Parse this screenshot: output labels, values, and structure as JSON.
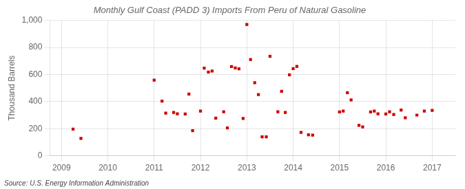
{
  "chart_data": {
    "type": "scatter",
    "title": "Monthly Gulf Coast (PADD 3) Imports From Peru of Natural Gasoline",
    "ylabel": "Thousand Barrels",
    "annotation": "Source: U.S. Energy Information Administration",
    "color": "#cc0000",
    "marker": "square",
    "grid": true,
    "xlim": [
      2008.75,
      2017.5
    ],
    "xticks": [
      2009,
      2010,
      2011,
      2012,
      2013,
      2014,
      2015,
      2016,
      2017
    ],
    "ylim": [
      0,
      1000
    ],
    "yticks": [
      0,
      200,
      400,
      600,
      800,
      {
        "value": 1000,
        "label": "1,000"
      }
    ],
    "x": [
      2009.25,
      2009.42,
      2011.0,
      2011.17,
      2011.25,
      2011.42,
      2011.5,
      2011.67,
      2011.75,
      2011.83,
      2012.0,
      2012.08,
      2012.17,
      2012.25,
      2012.33,
      2012.5,
      2012.58,
      2012.67,
      2012.75,
      2012.83,
      2012.92,
      2013.0,
      2013.08,
      2013.17,
      2013.25,
      2013.33,
      2013.42,
      2013.5,
      2013.67,
      2013.75,
      2013.83,
      2013.92,
      2014.0,
      2014.08,
      2014.17,
      2014.33,
      2014.42,
      2015.0,
      2015.08,
      2015.17,
      2015.25,
      2015.42,
      2015.5,
      2015.67,
      2015.75,
      2015.83,
      2016.0,
      2016.08,
      2016.17,
      2016.33,
      2016.42,
      2016.67,
      2016.83,
      2017.0
    ],
    "values": [
      196,
      128,
      558,
      404,
      314,
      320,
      310,
      308,
      456,
      185,
      330,
      647,
      618,
      625,
      278,
      325,
      205,
      658,
      648,
      642,
      275,
      970,
      710,
      539,
      452,
      139,
      140,
      735,
      325,
      476,
      320,
      597,
      643,
      660,
      172,
      155,
      152,
      324,
      330,
      466,
      412,
      224,
      213,
      324,
      330,
      310,
      308,
      325,
      305,
      338,
      280,
      300,
      330,
      335
    ]
  }
}
